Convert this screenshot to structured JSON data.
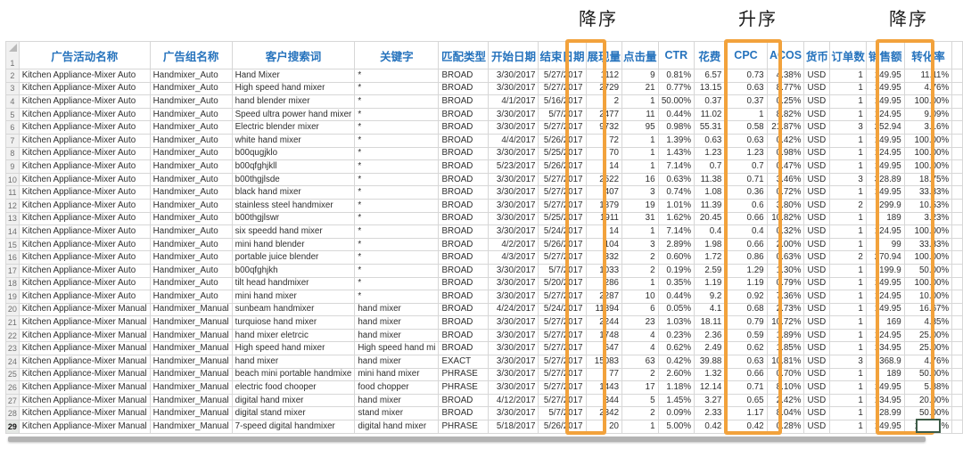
{
  "colors": {
    "header_text": "#2673bd",
    "highlight_border": "#f2a23c",
    "selection_border": "#3d5b47"
  },
  "annotations": [
    {
      "label": "降序",
      "column": "点击量"
    },
    {
      "label": "升序",
      "column": "ACOS"
    },
    {
      "label": "降序",
      "column": "转化率"
    }
  ],
  "table": {
    "header_row_number": "1",
    "columns": [
      {
        "label": "广告活动名称",
        "highlighted": false
      },
      {
        "label": "广告组名称",
        "highlighted": false
      },
      {
        "label": "客户搜索词",
        "highlighted": false
      },
      {
        "label": "关键字",
        "highlighted": false
      },
      {
        "label": "匹配类型",
        "highlighted": false
      },
      {
        "label": "开始日期",
        "highlighted": false
      },
      {
        "label": "结束日期",
        "highlighted": false
      },
      {
        "label": "展现量",
        "highlighted": false
      },
      {
        "label": "点击量",
        "highlighted": true
      },
      {
        "label": "CTR",
        "highlighted": false
      },
      {
        "label": "花费",
        "highlighted": false
      },
      {
        "label": "CPC",
        "highlighted": false
      },
      {
        "label": "ACOS",
        "highlighted": true
      },
      {
        "label": "货币",
        "highlighted": false
      },
      {
        "label": "订单数",
        "highlighted": false
      },
      {
        "label": "销售额",
        "highlighted": false
      },
      {
        "label": "转化率",
        "highlighted": true
      }
    ],
    "rows": [
      {
        "n": "2",
        "cells": [
          "Kitchen Appliance-Mixer Auto",
          "Handmixer_Auto",
          "Hand Mixer",
          "*",
          "BROAD",
          "3/30/2017",
          "5/27/2017",
          "1112",
          "9",
          "0.81%",
          "6.57",
          "0.73",
          "4.38%",
          "USD",
          "1",
          "149.95",
          "11.11%"
        ]
      },
      {
        "n": "3",
        "cells": [
          "Kitchen Appliance-Mixer Auto",
          "Handmixer_Auto",
          "High speed hand mixer",
          "*",
          "BROAD",
          "3/30/2017",
          "5/27/2017",
          "2729",
          "21",
          "0.77%",
          "13.15",
          "0.63",
          "8.77%",
          "USD",
          "1",
          "149.95",
          "4.76%"
        ]
      },
      {
        "n": "4",
        "cells": [
          "Kitchen Appliance-Mixer Auto",
          "Handmixer_Auto",
          "hand blender mixer",
          "*",
          "BROAD",
          "4/1/2017",
          "5/16/2017",
          "2",
          "1",
          "50.00%",
          "0.37",
          "0.37",
          "0.25%",
          "USD",
          "1",
          "149.95",
          "100.00%"
        ]
      },
      {
        "n": "5",
        "cells": [
          "Kitchen Appliance-Mixer Auto",
          "Handmixer_Auto",
          "Speed ultra power hand mixer",
          "*",
          "BROAD",
          "3/30/2017",
          "5/7/2017",
          "2477",
          "11",
          "0.44%",
          "11.02",
          "1",
          "8.82%",
          "USD",
          "1",
          "124.95",
          "9.09%"
        ]
      },
      {
        "n": "6",
        "cells": [
          "Kitchen Appliance-Mixer Auto",
          "Handmixer_Auto",
          "Electric blender mixer",
          "*",
          "BROAD",
          "3/30/2017",
          "5/27/2017",
          "9732",
          "95",
          "0.98%",
          "55.31",
          "0.58",
          "21.87%",
          "USD",
          "3",
          "252.94",
          "3.16%"
        ]
      },
      {
        "n": "7",
        "cells": [
          "Kitchen Appliance-Mixer Auto",
          "Handmixer_Auto",
          "white hand mixer",
          "*",
          "BROAD",
          "4/4/2017",
          "5/26/2017",
          "72",
          "1",
          "1.39%",
          "0.63",
          "0.63",
          "0.42%",
          "USD",
          "1",
          "149.95",
          "100.00%"
        ]
      },
      {
        "n": "8",
        "cells": [
          "Kitchen Appliance-Mixer Auto",
          "Handmixer_Auto",
          "b00qugjklo",
          "*",
          "BROAD",
          "3/30/2017",
          "5/25/2017",
          "70",
          "1",
          "1.43%",
          "1.23",
          "1.23",
          "0.98%",
          "USD",
          "1",
          "124.95",
          "100.00%"
        ]
      },
      {
        "n": "9",
        "cells": [
          "Kitchen Appliance-Mixer Auto",
          "Handmixer_Auto",
          "b00qfghjkll",
          "*",
          "BROAD",
          "5/23/2017",
          "5/26/2017",
          "14",
          "1",
          "7.14%",
          "0.7",
          "0.7",
          "0.47%",
          "USD",
          "1",
          "149.95",
          "100.00%"
        ]
      },
      {
        "n": "10",
        "cells": [
          "Kitchen Appliance-Mixer Auto",
          "Handmixer_Auto",
          "b00thgjlsde",
          "*",
          "BROAD",
          "3/30/2017",
          "5/27/2017",
          "2522",
          "16",
          "0.63%",
          "11.38",
          "0.71",
          "3.46%",
          "USD",
          "3",
          "328.89",
          "18.75%"
        ]
      },
      {
        "n": "11",
        "cells": [
          "Kitchen Appliance-Mixer Auto",
          "Handmixer_Auto",
          "black hand mixer",
          "*",
          "BROAD",
          "3/30/2017",
          "5/27/2017",
          "407",
          "3",
          "0.74%",
          "1.08",
          "0.36",
          "0.72%",
          "USD",
          "1",
          "149.95",
          "33.33%"
        ]
      },
      {
        "n": "12",
        "cells": [
          "Kitchen Appliance-Mixer Auto",
          "Handmixer_Auto",
          "stainless steel handmixer",
          "*",
          "BROAD",
          "3/30/2017",
          "5/27/2017",
          "1879",
          "19",
          "1.01%",
          "11.39",
          "0.6",
          "3.80%",
          "USD",
          "2",
          "299.9",
          "10.53%"
        ]
      },
      {
        "n": "13",
        "cells": [
          "Kitchen Appliance-Mixer Auto",
          "Handmixer_Auto",
          "b00thgjlswr",
          "*",
          "BROAD",
          "3/30/2017",
          "5/25/2017",
          "1911",
          "31",
          "1.62%",
          "20.45",
          "0.66",
          "10.82%",
          "USD",
          "1",
          "189",
          "3.23%"
        ]
      },
      {
        "n": "14",
        "cells": [
          "Kitchen Appliance-Mixer Auto",
          "Handmixer_Auto",
          "six speedd hand mixer",
          "*",
          "BROAD",
          "3/30/2017",
          "5/24/2017",
          "14",
          "1",
          "7.14%",
          "0.4",
          "0.4",
          "0.32%",
          "USD",
          "1",
          "124.95",
          "100.00%"
        ]
      },
      {
        "n": "15",
        "cells": [
          "Kitchen Appliance-Mixer Auto",
          "Handmixer_Auto",
          "mini hand blender",
          "*",
          "BROAD",
          "4/2/2017",
          "5/26/2017",
          "104",
          "3",
          "2.89%",
          "1.98",
          "0.66",
          "2.00%",
          "USD",
          "1",
          "99",
          "33.33%"
        ]
      },
      {
        "n": "16",
        "cells": [
          "Kitchen Appliance-Mixer Auto",
          "Handmixer_Auto",
          "portable juice blender",
          "*",
          "BROAD",
          "4/3/2017",
          "5/27/2017",
          "332",
          "2",
          "0.60%",
          "1.72",
          "0.86",
          "0.63%",
          "USD",
          "2",
          "270.94",
          "100.00%"
        ]
      },
      {
        "n": "17",
        "cells": [
          "Kitchen Appliance-Mixer Auto",
          "Handmixer_Auto",
          "b00qfghjkh",
          "*",
          "BROAD",
          "3/30/2017",
          "5/7/2017",
          "1033",
          "2",
          "0.19%",
          "2.59",
          "1.29",
          "1.30%",
          "USD",
          "1",
          "199.9",
          "50.00%"
        ]
      },
      {
        "n": "18",
        "cells": [
          "Kitchen Appliance-Mixer Auto",
          "Handmixer_Auto",
          "tilt head handmixer",
          "*",
          "BROAD",
          "3/30/2017",
          "5/20/2017",
          "286",
          "1",
          "0.35%",
          "1.19",
          "1.19",
          "0.79%",
          "USD",
          "1",
          "149.95",
          "100.00%"
        ]
      },
      {
        "n": "19",
        "cells": [
          "Kitchen Appliance-Mixer Auto",
          "Handmixer_Auto",
          "mini hand mixer",
          "*",
          "BROAD",
          "3/30/2017",
          "5/27/2017",
          "2287",
          "10",
          "0.44%",
          "9.2",
          "0.92",
          "7.36%",
          "USD",
          "1",
          "124.95",
          "10.00%"
        ]
      },
      {
        "n": "20",
        "cells": [
          "Kitchen Appliance-Mixer Manual",
          "Handmixer_Manual",
          "sunbeam handmixer",
          "hand mixer",
          "BROAD",
          "4/24/2017",
          "5/24/2017",
          "11894",
          "6",
          "0.05%",
          "4.1",
          "0.68",
          "2.73%",
          "USD",
          "1",
          "149.95",
          "16.67%"
        ]
      },
      {
        "n": "21",
        "cells": [
          "Kitchen Appliance-Mixer Manual",
          "Handmixer_Manual",
          "turquiose hand mixer",
          "hand mixer",
          "BROAD",
          "3/30/2017",
          "5/27/2017",
          "2244",
          "23",
          "1.03%",
          "18.11",
          "0.79",
          "10.72%",
          "USD",
          "1",
          "169",
          "4.35%"
        ]
      },
      {
        "n": "22",
        "cells": [
          "Kitchen Appliance-Mixer Manual",
          "Handmixer_Manual",
          "hand mixer eletrcic",
          "hand mixer",
          "BROAD",
          "3/30/2017",
          "5/27/2017",
          "1748",
          "4",
          "0.23%",
          "2.36",
          "0.59",
          "1.89%",
          "USD",
          "1",
          "124.95",
          "25.00%"
        ]
      },
      {
        "n": "23",
        "cells": [
          "Kitchen Appliance-Mixer Manual",
          "Handmixer_Manual",
          "High speed hand mixer",
          "High speed hand mi",
          "BROAD",
          "3/30/2017",
          "5/27/2017",
          "647",
          "4",
          "0.62%",
          "2.49",
          "0.62",
          "1.85%",
          "USD",
          "1",
          "134.95",
          "25.00%"
        ]
      },
      {
        "n": "24",
        "cells": [
          "Kitchen Appliance-Mixer Manual",
          "Handmixer_Manual",
          "hand mixer",
          "hand mixer",
          "EXACT",
          "3/30/2017",
          "5/27/2017",
          "15083",
          "63",
          "0.42%",
          "39.88",
          "0.63",
          "10.81%",
          "USD",
          "3",
          "368.9",
          "4.76%"
        ]
      },
      {
        "n": "25",
        "cells": [
          "Kitchen Appliance-Mixer Manual",
          "Handmixer_Manual",
          "beach mini portable handmixe",
          "mini hand mixer",
          "PHRASE",
          "3/30/2017",
          "5/27/2017",
          "77",
          "2",
          "2.60%",
          "1.32",
          "0.66",
          "0.70%",
          "USD",
          "1",
          "189",
          "50.00%"
        ]
      },
      {
        "n": "26",
        "cells": [
          "Kitchen Appliance-Mixer Manual",
          "Handmixer_Manual",
          "electric food chooper",
          "food chopper",
          "PHRASE",
          "3/30/2017",
          "5/27/2017",
          "1443",
          "17",
          "1.18%",
          "12.14",
          "0.71",
          "8.10%",
          "USD",
          "1",
          "149.95",
          "5.88%"
        ]
      },
      {
        "n": "27",
        "cells": [
          "Kitchen Appliance-Mixer Manual",
          "Handmixer_Manual",
          "digital hand mixer",
          "hand mixer",
          "BROAD",
          "4/12/2017",
          "5/27/2017",
          "344",
          "5",
          "1.45%",
          "3.27",
          "0.65",
          "2.42%",
          "USD",
          "1",
          "134.95",
          "20.00%"
        ]
      },
      {
        "n": "28",
        "cells": [
          "Kitchen Appliance-Mixer Manual",
          "Handmixer_Manual",
          "digital stand mixer",
          "stand mixer",
          "BROAD",
          "3/30/2017",
          "5/7/2017",
          "2342",
          "2",
          "0.09%",
          "2.33",
          "1.17",
          "8.04%",
          "USD",
          "1",
          "28.99",
          "50.00%"
        ]
      },
      {
        "n": "29",
        "cells": [
          "Kitchen Appliance-Mixer Manual",
          "Handmixer_Manual",
          "7-speed digital handmixer",
          "digital hand mixer",
          "PHRASE",
          "5/18/2017",
          "5/26/2017",
          "20",
          "1",
          "5.00%",
          "0.42",
          "0.42",
          "0.28%",
          "USD",
          "1",
          "149.95",
          "100.00%"
        ]
      }
    ]
  },
  "selection": {
    "active_row_number": "29"
  }
}
